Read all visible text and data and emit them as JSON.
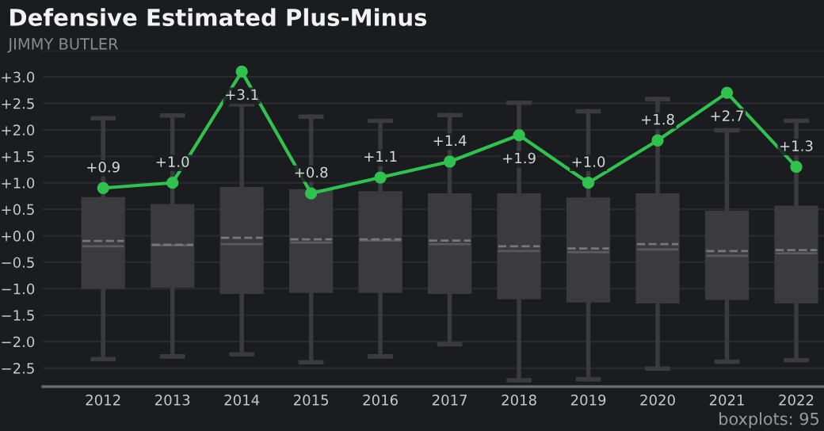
{
  "chart_data": {
    "type": "box",
    "title": "Defensive Estimated Plus-Minus",
    "subtitle": "JIMMY BUTLER",
    "categories": [
      "2012",
      "2013",
      "2014",
      "2015",
      "2016",
      "2017",
      "2018",
      "2019",
      "2020",
      "2021",
      "2022"
    ],
    "series": [
      {
        "color": "#3a3a3f",
        "boxes": [
          {
            "low": -2.33,
            "q1": -0.98,
            "median": -0.2,
            "q3": 0.71,
            "high": 2.22,
            "mean": -0.1
          },
          {
            "low": -2.28,
            "q1": -0.96,
            "median": -0.18,
            "q3": 0.58,
            "high": 2.27,
            "mean": -0.17
          },
          {
            "low": -2.24,
            "q1": -1.08,
            "median": -0.16,
            "q3": 0.9,
            "high": 2.48,
            "mean": -0.04
          },
          {
            "low": -2.39,
            "q1": -1.06,
            "median": -0.13,
            "q3": 0.86,
            "high": 2.25,
            "mean": -0.07
          },
          {
            "low": -2.28,
            "q1": -1.06,
            "median": -0.09,
            "q3": 0.82,
            "high": 2.17,
            "mean": -0.07
          },
          {
            "low": -2.05,
            "q1": -1.08,
            "median": -0.16,
            "q3": 0.78,
            "high": 2.28,
            "mean": -0.09
          },
          {
            "low": -2.73,
            "q1": -1.18,
            "median": -0.29,
            "q3": 0.78,
            "high": 2.51,
            "mean": -0.2
          },
          {
            "low": -2.71,
            "q1": -1.24,
            "median": -0.31,
            "q3": 0.7,
            "high": 2.35,
            "mean": -0.24
          },
          {
            "low": -2.51,
            "q1": -1.26,
            "median": -0.26,
            "q3": 0.78,
            "high": 2.58,
            "mean": -0.16
          },
          {
            "low": -2.38,
            "q1": -1.19,
            "median": -0.38,
            "q3": 0.45,
            "high": 1.99,
            "mean": -0.29
          },
          {
            "low": -2.35,
            "q1": -1.26,
            "median": -0.33,
            "q3": 0.55,
            "high": 2.17,
            "mean": -0.27
          }
        ]
      },
      {
        "type": "line",
        "color": "#2fc24f",
        "marker": "circle",
        "values": [
          0.9,
          1.0,
          3.1,
          0.8,
          1.1,
          1.4,
          1.9,
          1.0,
          1.8,
          2.7,
          1.3
        ],
        "value_labels": [
          "+0.9",
          "+1.0",
          "+3.1",
          "+0.8",
          "+1.1",
          "+1.4",
          "+1.9",
          "+1.0",
          "+1.8",
          "+2.7",
          "+1.3"
        ]
      }
    ],
    "ylim": [
      -2.85,
      3.5
    ],
    "yticks": [
      {
        "value": -2.5,
        "label": "−2.5"
      },
      {
        "value": -2.0,
        "label": "−2.0"
      },
      {
        "value": -1.5,
        "label": "−1.5"
      },
      {
        "value": -1.0,
        "label": "−1.0"
      },
      {
        "value": -0.5,
        "label": "−0.5"
      },
      {
        "value": 0.0,
        "label": "+0.0"
      },
      {
        "value": 0.5,
        "label": "+0.5"
      },
      {
        "value": 1.0,
        "label": "+1.0"
      },
      {
        "value": 1.5,
        "label": "+1.5"
      },
      {
        "value": 2.0,
        "label": "+2.0"
      },
      {
        "value": 2.5,
        "label": "+2.5"
      },
      {
        "value": 3.0,
        "label": "+3.0"
      },
      {
        "value": 3.5,
        "label": null
      }
    ],
    "grid": "y",
    "annotations": [
      "boxplots: 95"
    ]
  }
}
